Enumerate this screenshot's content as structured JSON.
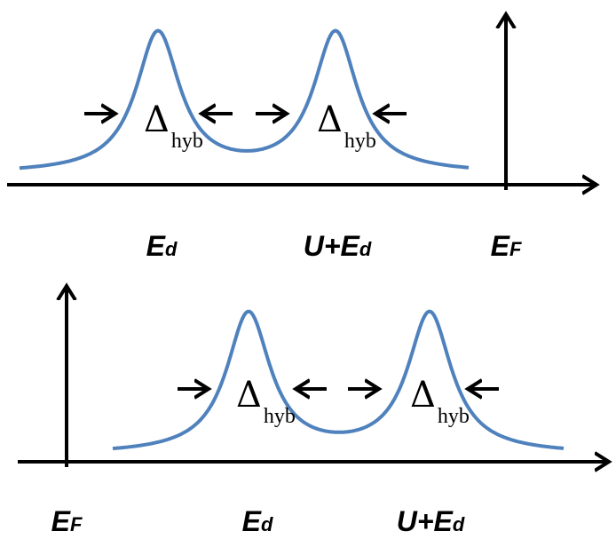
{
  "panels": [
    {
      "deltas": [
        {
          "symbol": "Δ",
          "subscript": "hyb"
        },
        {
          "symbol": "Δ",
          "subscript": "hyb"
        }
      ],
      "labels": [
        {
          "main": "E",
          "subscript": "d"
        },
        {
          "main": "U+E",
          "subscript": "d"
        },
        {
          "main": "E",
          "subscript": "F"
        }
      ]
    },
    {
      "deltas": [
        {
          "symbol": "Δ",
          "subscript": "hyb"
        },
        {
          "symbol": "Δ",
          "subscript": "hyb"
        }
      ],
      "labels": [
        {
          "main": "E",
          "subscript": "F"
        },
        {
          "main": "E",
          "subscript": "d"
        },
        {
          "main": "U+E",
          "subscript": "d"
        }
      ]
    }
  ]
}
